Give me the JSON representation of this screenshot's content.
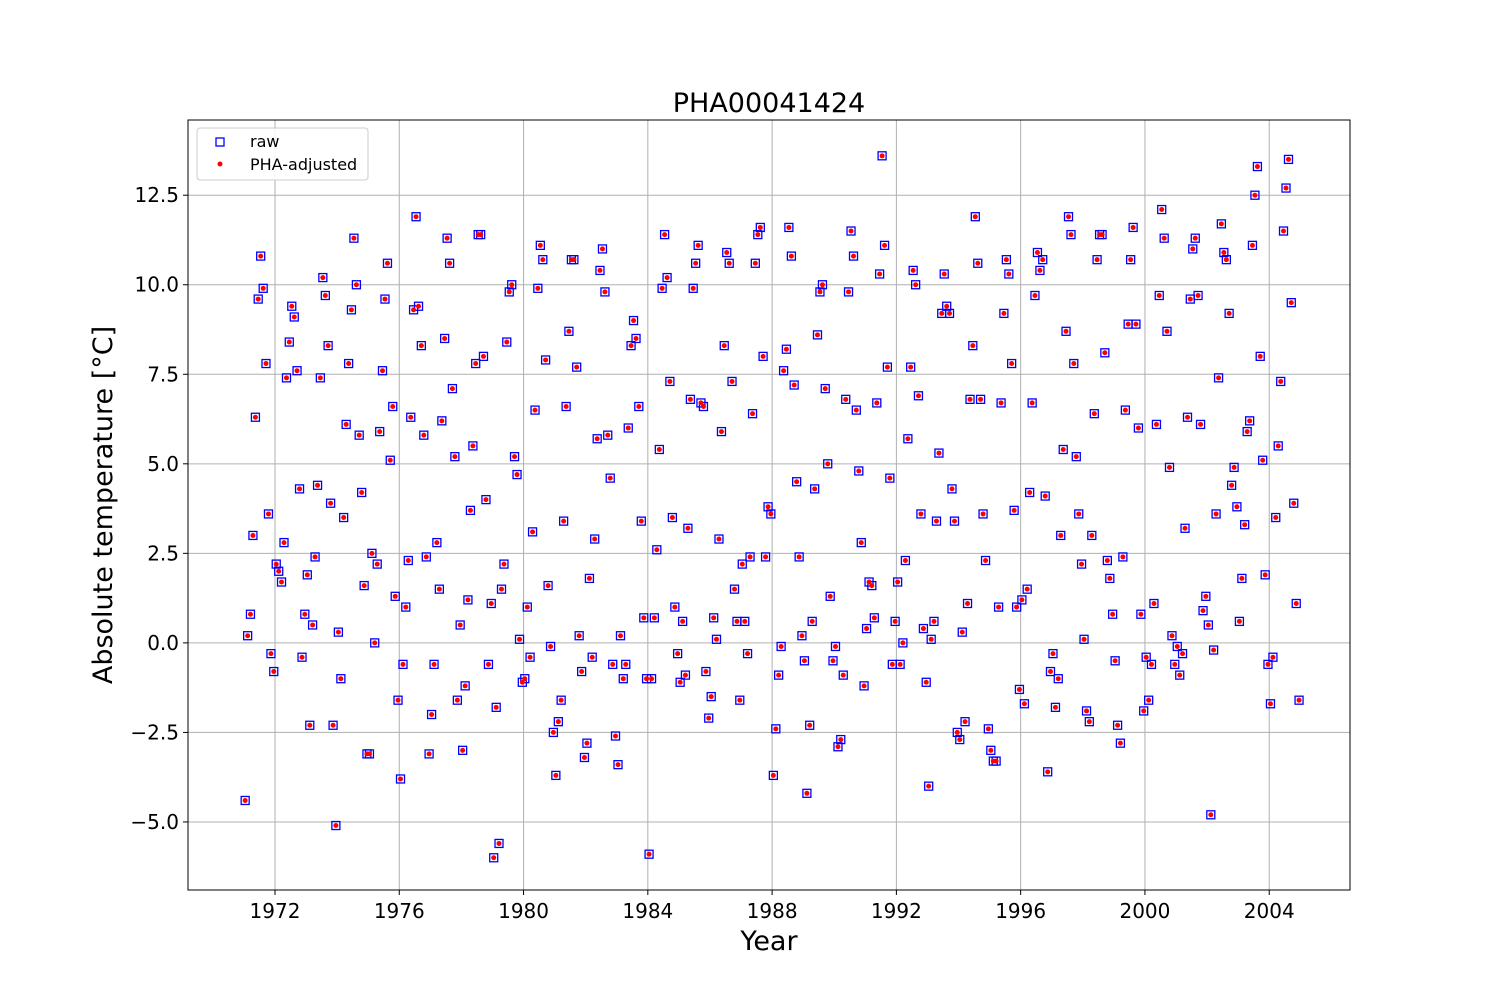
{
  "chart_data": {
    "type": "scatter",
    "title": "PHA00041424",
    "xlabel": "Year",
    "ylabel": "Absolute temperature [°C]",
    "xlim": [
      1969.2,
      2006.6
    ],
    "ylim": [
      -6.9,
      14.6
    ],
    "xticks": [
      1972,
      1976,
      1980,
      1984,
      1988,
      1992,
      1996,
      2000,
      2004
    ],
    "xtick_labels": [
      "1972",
      "1976",
      "1980",
      "1984",
      "1988",
      "1992",
      "1996",
      "2000",
      "2004"
    ],
    "yticks": [
      -5.0,
      -2.5,
      0.0,
      2.5,
      5.0,
      7.5,
      10.0,
      12.5
    ],
    "ytick_labels": [
      "−5.0",
      "−2.5",
      "0.0",
      "2.5",
      "5.0",
      "7.5",
      "10.0",
      "12.5"
    ],
    "grid": true,
    "legend_position": "top-left",
    "legend": [
      "raw",
      "PHA-adjusted"
    ],
    "colors": {
      "raw": "#0000ff",
      "adjusted": "#ff0000"
    },
    "series": [
      {
        "name": "raw",
        "marker": "open-square",
        "x": [
          1971.04,
          1971.12,
          1971.21,
          1971.29,
          1971.37,
          1971.46,
          1971.54,
          1971.62,
          1971.71,
          1971.79,
          1971.87,
          1971.96,
          1972.04,
          1972.12,
          1972.21,
          1972.29,
          1972.37,
          1972.46,
          1972.54,
          1972.62,
          1972.71,
          1972.79,
          1972.87,
          1972.96,
          1973.04,
          1973.12,
          1973.21,
          1973.29,
          1973.37,
          1973.46,
          1973.54,
          1973.62,
          1973.71,
          1973.79,
          1973.87,
          1973.96,
          1974.04,
          1974.12,
          1974.21,
          1974.29,
          1974.37,
          1974.46,
          1974.54,
          1974.62,
          1974.71,
          1974.79,
          1974.87,
          1974.96,
          1975.04,
          1975.12,
          1975.21,
          1975.29,
          1975.37,
          1975.46,
          1975.54,
          1975.62,
          1975.71,
          1975.79,
          1975.87,
          1975.96,
          1976.04,
          1976.12,
          1976.21,
          1976.29,
          1976.37,
          1976.46,
          1976.54,
          1976.62,
          1976.71,
          1976.79,
          1976.87,
          1976.96,
          1977.04,
          1977.12,
          1977.21,
          1977.29,
          1977.37,
          1977.46,
          1977.54,
          1977.62,
          1977.71,
          1977.79,
          1977.87,
          1977.96,
          1978.04,
          1978.12,
          1978.21,
          1978.29,
          1978.37,
          1978.46,
          1978.54,
          1978.62,
          1978.71,
          1978.79,
          1978.87,
          1978.96,
          1979.04,
          1979.12,
          1979.21,
          1979.29,
          1979.37,
          1979.46,
          1979.54,
          1979.62,
          1979.71,
          1979.79,
          1979.87,
          1979.96,
          1980.04,
          1980.12,
          1980.21,
          1980.29,
          1980.37,
          1980.46,
          1980.54,
          1980.62,
          1980.71,
          1980.79,
          1980.87,
          1980.96,
          1981.04,
          1981.12,
          1981.21,
          1981.29,
          1981.37,
          1981.46,
          1981.54,
          1981.62,
          1981.71,
          1981.79,
          1981.87,
          1981.96,
          1982.04,
          1982.12,
          1982.21,
          1982.29,
          1982.37,
          1982.46,
          1982.54,
          1982.62,
          1982.71,
          1982.79,
          1982.87,
          1982.96,
          1983.04,
          1983.12,
          1983.21,
          1983.29,
          1983.37,
          1983.46,
          1983.54,
          1983.62,
          1983.71,
          1983.79,
          1983.87,
          1983.96,
          1984.04,
          1984.12,
          1984.21,
          1984.29,
          1984.37,
          1984.46,
          1984.54,
          1984.62,
          1984.71,
          1984.79,
          1984.87,
          1984.96,
          1985.04,
          1985.12,
          1985.21,
          1985.29,
          1985.37,
          1985.46,
          1985.54,
          1985.62,
          1985.71,
          1985.79,
          1985.87,
          1985.96,
          1986.04,
          1986.12,
          1986.21,
          1986.29,
          1986.37,
          1986.46,
          1986.54,
          1986.62,
          1986.71,
          1986.79,
          1986.87,
          1986.96,
          1987.04,
          1987.12,
          1987.21,
          1987.29,
          1987.37,
          1987.46,
          1987.54,
          1987.62,
          1987.71,
          1987.79,
          1987.87,
          1987.96,
          1988.04,
          1988.12,
          1988.21,
          1988.29,
          1988.37,
          1988.46,
          1988.54,
          1988.62,
          1988.71,
          1988.79,
          1988.87,
          1988.96,
          1989.04,
          1989.12,
          1989.21,
          1989.29,
          1989.37,
          1989.46,
          1989.54,
          1989.62,
          1989.71,
          1989.79,
          1989.87,
          1989.96,
          1990.04,
          1990.12,
          1990.21,
          1990.29,
          1990.37,
          1990.46,
          1990.54,
          1990.62,
          1990.71,
          1990.79,
          1990.87,
          1990.96,
          1991.04,
          1991.12,
          1991.21,
          1991.29,
          1991.37,
          1991.46,
          1991.54,
          1991.62,
          1991.71,
          1991.79,
          1991.87,
          1991.96,
          1992.04,
          1992.12,
          1992.21,
          1992.29,
          1992.37,
          1992.46,
          1992.54,
          1992.62,
          1992.71,
          1992.79,
          1992.87,
          1992.96,
          1993.04,
          1993.12,
          1993.21,
          1993.29,
          1993.37,
          1993.46,
          1993.54,
          1993.62,
          1993.71,
          1993.79,
          1993.87,
          1993.96,
          1994.04,
          1994.12,
          1994.21,
          1994.29,
          1994.37,
          1994.46,
          1994.54,
          1994.62,
          1994.71,
          1994.79,
          1994.87,
          1994.96,
          1995.04,
          1995.12,
          1995.21,
          1995.29,
          1995.37,
          1995.46,
          1995.54,
          1995.62,
          1995.71,
          1995.79,
          1995.87,
          1995.96,
          1996.04,
          1996.12,
          1996.21,
          1996.29,
          1996.37,
          1996.46,
          1996.54,
          1996.62,
          1996.71,
          1996.79,
          1996.87,
          1996.96,
          1997.04,
          1997.12,
          1997.21,
          1997.29,
          1997.37,
          1997.46,
          1997.54,
          1997.62,
          1997.71,
          1997.79,
          1997.87,
          1997.96,
          1998.04,
          1998.12,
          1998.21,
          1998.29,
          1998.37,
          1998.46,
          1998.54,
          1998.62,
          1998.71,
          1998.79,
          1998.87,
          1998.96,
          1999.04,
          1999.12,
          1999.21,
          1999.29,
          1999.37,
          1999.46,
          1999.54,
          1999.62,
          1999.71,
          1999.79,
          1999.87,
          1999.96,
          2000.04,
          2000.12,
          2000.21,
          2000.29,
          2000.37,
          2000.46,
          2000.54,
          2000.62,
          2000.71,
          2000.79,
          2000.87,
          2000.96,
          2001.04,
          2001.12,
          2001.21,
          2001.29,
          2001.37,
          2001.46,
          2001.54,
          2001.62,
          2001.71,
          2001.79,
          2001.87,
          2001.96,
          2002.04,
          2002.12,
          2002.21,
          2002.29,
          2002.37,
          2002.46,
          2002.54,
          2002.62,
          2002.71,
          2002.79,
          2002.87,
          2002.96,
          2003.04,
          2003.12,
          2003.21,
          2003.29,
          2003.37,
          2003.46,
          2003.54,
          2003.62,
          2003.71,
          2003.79,
          2003.87,
          2003.96,
          2004.04,
          2004.12,
          2004.21,
          2004.29,
          2004.37,
          2004.46,
          2004.54,
          2004.62,
          2004.71,
          2004.79,
          2004.87,
          2004.96
        ],
        "y": [
          -4.4,
          0.2,
          0.8,
          3.0,
          6.3,
          9.6,
          10.8,
          9.9,
          7.8,
          3.6,
          -0.3,
          -0.8,
          2.2,
          2.0,
          1.7,
          2.8,
          7.4,
          8.4,
          9.4,
          9.1,
          7.6,
          4.3,
          -0.4,
          0.8,
          1.9,
          -2.3,
          0.5,
          2.4,
          4.4,
          7.4,
          10.2,
          9.7,
          8.3,
          3.9,
          -2.3,
          -5.1,
          0.3,
          -1.0,
          3.5,
          6.1,
          7.8,
          9.3,
          11.3,
          10.0,
          5.8,
          4.2,
          1.6,
          -3.1,
          -3.1,
          2.5,
          0.0,
          2.2,
          5.9,
          7.6,
          9.6,
          10.6,
          5.1,
          6.6,
          1.3,
          -1.6,
          -3.8,
          -0.6,
          1.0,
          2.3,
          6.3,
          9.3,
          11.9,
          9.4,
          8.3,
          5.8,
          2.4,
          -3.1,
          -2.0,
          -0.6,
          2.8,
          1.5,
          6.2,
          8.5,
          11.3,
          10.6,
          7.1,
          5.2,
          -1.6,
          0.5,
          -3.0,
          -1.2,
          1.2,
          3.7,
          5.5,
          7.8,
          11.4,
          11.4,
          8.0,
          4.0,
          -0.6,
          1.1,
          -6.0,
          -1.8,
          -5.6,
          1.5,
          2.2,
          8.4,
          9.8,
          10.0,
          5.2,
          4.7,
          0.1,
          -1.1,
          -1.0,
          1.0,
          -0.4,
          3.1,
          6.5,
          9.9,
          11.1,
          10.7,
          7.9,
          1.6,
          -0.1,
          -2.5,
          -3.7,
          -2.2,
          -1.6,
          3.4,
          6.6,
          8.7,
          10.7,
          10.7,
          7.7,
          0.2,
          -0.8,
          -3.2,
          -2.8,
          1.8,
          -0.4,
          2.9,
          5.7,
          10.4,
          11.0,
          9.8,
          5.8,
          4.6,
          -0.6,
          -2.6,
          -3.4,
          0.2,
          -1.0,
          -0.6,
          6.0,
          8.3,
          9.0,
          8.5,
          6.6,
          3.4,
          0.7,
          -1.0,
          -5.9,
          -1.0,
          0.7,
          2.6,
          5.4,
          9.9,
          11.4,
          10.2,
          7.3,
          3.5,
          1.0,
          -0.3,
          -1.1,
          0.6,
          -0.9,
          3.2,
          6.8,
          9.9,
          10.6,
          11.1,
          6.7,
          6.6,
          -0.8,
          -2.1,
          -1.5,
          0.7,
          0.1,
          2.9,
          5.9,
          8.3,
          10.9,
          10.6,
          7.3,
          1.5,
          0.6,
          -1.6,
          2.2,
          0.6,
          -0.3,
          2.4,
          6.4,
          10.6,
          11.4,
          11.6,
          8.0,
          2.4,
          3.8,
          3.6,
          -3.7,
          -2.4,
          -0.9,
          -0.1,
          7.6,
          8.2,
          11.6,
          10.8,
          7.2,
          4.5,
          2.4,
          0.2,
          -0.5,
          -4.2,
          -2.3,
          0.6,
          4.3,
          8.6,
          9.8,
          10.0,
          7.1,
          5.0,
          1.3,
          -0.5,
          -0.1,
          -2.9,
          -2.7,
          -0.9,
          6.8,
          9.8,
          11.5,
          10.8,
          6.5,
          4.8,
          2.8,
          -1.2,
          0.4,
          1.7,
          1.6,
          0.7,
          6.7,
          10.3,
          13.6,
          11.1,
          7.7,
          4.6,
          -0.6,
          0.6,
          1.7,
          -0.6,
          0.0,
          2.3,
          5.7,
          7.7,
          10.4,
          10.0,
          6.9,
          3.6,
          0.4,
          -1.1,
          -4.0,
          0.1,
          0.6,
          3.4,
          5.3,
          9.2,
          10.3,
          9.4,
          9.2,
          4.3,
          3.4,
          -2.5,
          -2.7,
          0.3,
          -2.2,
          1.1,
          6.8,
          8.3,
          11.9,
          10.6,
          6.8,
          3.6,
          2.3,
          -2.4,
          -3.0,
          -3.3,
          -3.3,
          1.0,
          6.7,
          9.2,
          10.7,
          10.3,
          7.8,
          3.7,
          1.0,
          -1.3,
          1.2,
          -1.7,
          1.5,
          4.2,
          6.7,
          9.7,
          10.9,
          10.4,
          10.7,
          4.1,
          -3.6,
          -0.8,
          -0.3,
          -1.8,
          -1.0,
          3.0,
          5.4,
          8.7,
          11.9,
          11.4,
          7.8,
          5.2,
          3.6,
          2.2,
          0.1,
          -1.9,
          -2.2,
          3.0,
          6.4,
          10.7,
          11.4,
          11.4,
          8.1,
          2.3,
          1.8,
          0.8,
          -0.5,
          -2.3,
          -2.8,
          2.4,
          6.5,
          8.9,
          10.7,
          11.6,
          8.9,
          6.0,
          0.8,
          -1.9,
          -0.4,
          -1.6,
          -0.6,
          1.1,
          6.1,
          9.7,
          12.1,
          11.3,
          8.7,
          4.9,
          0.2,
          -0.6,
          -0.1,
          -0.9,
          -0.3,
          3.2,
          6.3,
          9.6,
          11.0,
          11.3,
          9.7,
          6.1,
          0.9,
          1.3,
          0.5,
          -4.8,
          -0.2,
          3.6,
          7.4,
          11.7,
          10.9,
          10.7,
          9.2,
          4.4,
          4.9,
          3.8,
          0.6,
          1.8,
          3.3,
          5.9,
          6.2,
          11.1,
          12.5,
          13.3,
          8.0,
          5.1,
          1.9,
          -0.6,
          -1.7,
          -0.4,
          3.5,
          5.5,
          7.3,
          11.5,
          12.7,
          13.5,
          9.5,
          3.9,
          1.1,
          -1.6
        ]
      },
      {
        "name": "PHA-adjusted",
        "marker": "filled-dot",
        "same_as": "raw"
      }
    ]
  },
  "legend": {
    "raw_label": "raw",
    "adjusted_label": "PHA-adjusted"
  }
}
